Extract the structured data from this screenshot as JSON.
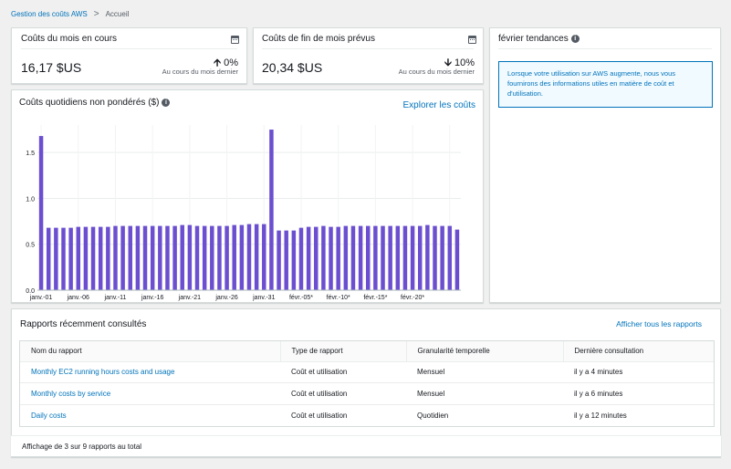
{
  "breadcrumb": {
    "root": "Gestion des coûts AWS",
    "separator": ">",
    "current": "Accueil"
  },
  "current_month": {
    "title": "Coûts du mois en cours",
    "value": "16,17 $US",
    "change": "0%",
    "change_direction": "up",
    "sub": "Au cours du mois dernier"
  },
  "forecast": {
    "title": "Coûts de fin de mois prévus",
    "value": "20,34 $US",
    "change": "10%",
    "change_direction": "down",
    "sub": "Au cours du mois dernier"
  },
  "trends": {
    "title": "février tendances",
    "message": "Lorsque votre utilisation sur AWS augmente, nous vous fournirons des informations utiles en matière de coût et d'utilisation."
  },
  "daily": {
    "title": "Coûts quotidiens non pondérés ($)",
    "explore_link": "Explorer les coûts"
  },
  "chart_data": {
    "type": "bar",
    "ylim": [
      0,
      1.8
    ],
    "yticks": [
      "0.0",
      "0.5",
      "1.0",
      "1.5"
    ],
    "ytick_values": [
      0,
      0.5,
      1.0,
      1.5
    ],
    "xtick_labels": [
      "janv.-01",
      "janv.-06",
      "janv.-11",
      "janv.-16",
      "janv.-21",
      "janv.-26",
      "janv.-31",
      "févr.-05*",
      "févr.-10*",
      "févr.-15*",
      "févr.-20*"
    ],
    "xtick_every": 5,
    "values": [
      1.68,
      0.68,
      0.68,
      0.68,
      0.68,
      0.69,
      0.69,
      0.69,
      0.69,
      0.69,
      0.7,
      0.7,
      0.7,
      0.7,
      0.7,
      0.7,
      0.7,
      0.7,
      0.7,
      0.71,
      0.71,
      0.7,
      0.7,
      0.7,
      0.7,
      0.7,
      0.71,
      0.71,
      0.72,
      0.72,
      0.72,
      1.75,
      0.65,
      0.65,
      0.65,
      0.68,
      0.69,
      0.69,
      0.7,
      0.69,
      0.69,
      0.7,
      0.7,
      0.7,
      0.7,
      0.7,
      0.7,
      0.7,
      0.7,
      0.7,
      0.7,
      0.7,
      0.71,
      0.7,
      0.7,
      0.7,
      0.66
    ],
    "bar_color": "#6b4fd0"
  },
  "reports": {
    "title": "Rapports récemment consultés",
    "view_all": "Afficher tous les rapports",
    "columns": [
      "Nom du rapport",
      "Type de rapport",
      "Granularité temporelle",
      "Dernière consultation"
    ],
    "rows": [
      [
        "Monthly EC2 running hours costs and usage",
        "Coût et utilisation",
        "Mensuel",
        "il y a 4 minutes"
      ],
      [
        "Monthly costs by service",
        "Coût et utilisation",
        "Mensuel",
        "il y a 6 minutes"
      ],
      [
        "Daily costs",
        "Coût et utilisation",
        "Quotidien",
        "il y a 12 minutes"
      ]
    ],
    "footer": "Affichage de 3 sur 9 rapports au total"
  },
  "colors": {
    "link": "#0073bb",
    "bar": "#6b4fd0",
    "info_bg": "#f1faff"
  }
}
